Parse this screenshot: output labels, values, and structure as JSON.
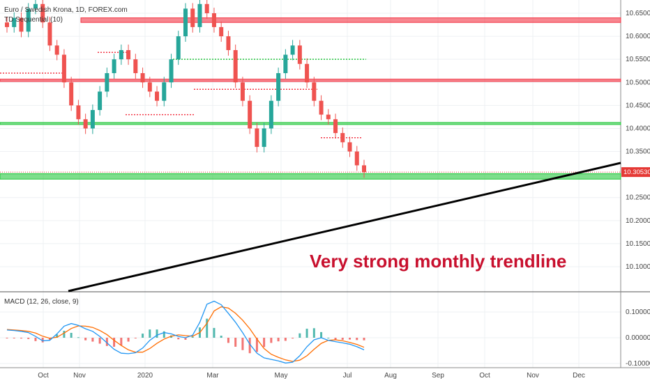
{
  "header": {
    "symbol": "Euro / Swedish Krona, 1D, FOREX.com",
    "indicator": "TD Sequential (10)"
  },
  "annotation": "Very strong monthly trendline",
  "macd_label": "MACD (12, 26, close, 9)",
  "colors": {
    "resistance_band": "#f23645",
    "support_band": "#26c83e",
    "trendline": "#000000",
    "annotation": "#c8102e",
    "price_marker": "#e53935",
    "macd_line": "#2196f3",
    "signal_line": "#ff6d00",
    "hist_up": "#26a69a",
    "hist_down": "#ef5350"
  },
  "chart_data": [
    {
      "type": "candlestick",
      "y_ticks": [
        "10.65000",
        "10.60000",
        "10.55000",
        "10.50000",
        "10.45000",
        "10.40000",
        "10.35000",
        "10.30000",
        "10.25000",
        "10.20000",
        "10.15000",
        "10.10000"
      ],
      "ylim": [
        10.08,
        10.67
      ],
      "x_ticks": [
        "Oct",
        "Nov",
        "2020",
        "Mar",
        "May",
        "Jul",
        "Aug",
        "Sep",
        "Oct",
        "Nov",
        "Dec"
      ],
      "last_price": "10.30530",
      "levels": [
        {
          "type": "resistance",
          "low": 10.63,
          "high": 10.64
        },
        {
          "type": "resistance",
          "low": 10.502,
          "high": 10.507
        },
        {
          "type": "support",
          "low": 10.409,
          "high": 10.413
        },
        {
          "type": "support",
          "low": 10.29,
          "high": 10.302
        }
      ],
      "trendline": {
        "from_month": "Oct",
        "from_value": 10.08,
        "to_month": "Dec",
        "to_value": 10.345
      },
      "closes": [
        10.62,
        10.64,
        10.61,
        10.66,
        10.67,
        10.63,
        10.58,
        10.56,
        10.5,
        10.45,
        10.42,
        10.4,
        10.44,
        10.48,
        10.52,
        10.55,
        10.57,
        10.55,
        10.52,
        10.5,
        10.48,
        10.46,
        10.5,
        10.55,
        10.6,
        10.66,
        10.62,
        10.67,
        10.65,
        10.62,
        10.6,
        10.57,
        10.5,
        10.46,
        10.4,
        10.36,
        10.4,
        10.46,
        10.52,
        10.56,
        10.58,
        10.54,
        10.5,
        10.46,
        10.43,
        10.42,
        10.39,
        10.37,
        10.35,
        10.32,
        10.305
      ]
    },
    {
      "type": "macd",
      "y_ticks": [
        "0.10000",
        "0.00000",
        "-0.10000"
      ],
      "ylim": [
        -0.105,
        0.16
      ],
      "macd": [
        0.03,
        0.028,
        0.025,
        0.02,
        0.005,
        -0.012,
        -0.01,
        0.015,
        0.045,
        0.055,
        0.048,
        0.035,
        0.025,
        0.005,
        -0.02,
        -0.045,
        -0.06,
        -0.062,
        -0.058,
        -0.04,
        -0.01,
        0.01,
        0.02,
        0.015,
        0.005,
        0.0,
        0.01,
        0.06,
        0.13,
        0.142,
        0.128,
        0.095,
        0.06,
        0.02,
        -0.025,
        -0.06,
        -0.078,
        -0.084,
        -0.09,
        -0.098,
        -0.095,
        -0.07,
        -0.035,
        -0.008,
        0.0,
        -0.01,
        -0.015,
        -0.02,
        -0.025,
        -0.035,
        -0.047
      ],
      "signal": [
        0.032,
        0.03,
        0.028,
        0.025,
        0.018,
        0.006,
        -0.002,
        0.002,
        0.018,
        0.036,
        0.046,
        0.045,
        0.04,
        0.028,
        0.012,
        -0.01,
        -0.03,
        -0.047,
        -0.056,
        -0.056,
        -0.042,
        -0.022,
        -0.005,
        0.006,
        0.011,
        0.008,
        0.006,
        0.02,
        0.056,
        0.104,
        0.12,
        0.115,
        0.095,
        0.068,
        0.035,
        -0.005,
        -0.042,
        -0.064,
        -0.076,
        -0.086,
        -0.092,
        -0.087,
        -0.07,
        -0.045,
        -0.022,
        -0.01,
        -0.008,
        -0.012,
        -0.018,
        -0.026,
        -0.037
      ]
    }
  ]
}
